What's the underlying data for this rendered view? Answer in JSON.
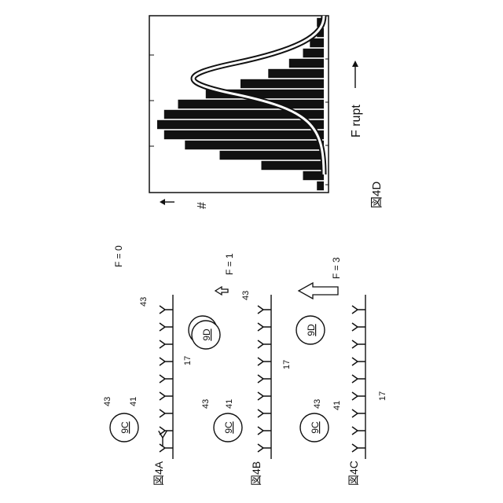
{
  "figure_labels": {
    "fig_4a": "図4A",
    "fig_4b": "図4B",
    "fig_4c": "図4C",
    "fig_4d": "図4D"
  },
  "forces": {
    "a": "F = 0",
    "b": "F = 1",
    "c": "F = 3"
  },
  "particles": {
    "left": "9C",
    "right": "9D"
  },
  "refs": {
    "label_43": "43",
    "label_41": "41",
    "label_17": "17"
  },
  "chart_data": {
    "type": "bar",
    "xlabel": "F rupt",
    "ylabel": "#",
    "bar_values": [
      1,
      3,
      9,
      15,
      20,
      23,
      24,
      23,
      21,
      17,
      12,
      8,
      5,
      3,
      2,
      1,
      1
    ],
    "curve": "bell-shaped fitted distribution overlaid on histogram",
    "grid": false
  }
}
